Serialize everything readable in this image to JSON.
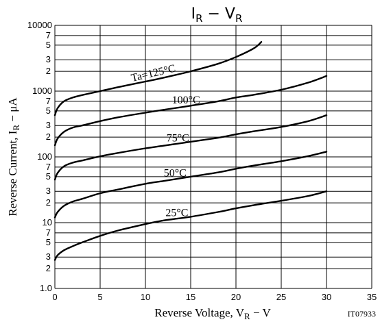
{
  "chart_data": {
    "type": "line",
    "title": {
      "main": "I",
      "sub": "R",
      "sep": " − ",
      "main2": "V",
      "sub2": "R"
    },
    "xlabel": {
      "text": "Reverse Voltage, V",
      "sub": "R",
      "suffix": " − V"
    },
    "ylabel": {
      "text": "Reverse Current, I",
      "sub": "R",
      "suffix": " − μA"
    },
    "x_ticks": [
      "0",
      "5",
      "10",
      "15",
      "20",
      "25",
      "30",
      "35"
    ],
    "y_major_ticks": [
      {
        "value": 1,
        "label": "1.0"
      },
      {
        "value": 10,
        "label": "10"
      },
      {
        "value": 100,
        "label": "100"
      },
      {
        "value": 1000,
        "label": "1000"
      },
      {
        "value": 10000,
        "label": "10000"
      }
    ],
    "y_minor_ticks": [
      {
        "value": 2,
        "label": "2"
      },
      {
        "value": 3,
        "label": "3"
      },
      {
        "value": 5,
        "label": "5"
      },
      {
        "value": 7,
        "label": "7"
      },
      {
        "value": 20,
        "label": "2"
      },
      {
        "value": 30,
        "label": "3"
      },
      {
        "value": 50,
        "label": "5"
      },
      {
        "value": 70,
        "label": "7"
      },
      {
        "value": 200,
        "label": "2"
      },
      {
        "value": 300,
        "label": "3"
      },
      {
        "value": 500,
        "label": "5"
      },
      {
        "value": 700,
        "label": "7"
      },
      {
        "value": 2000,
        "label": "2"
      },
      {
        "value": 3000,
        "label": "3"
      },
      {
        "value": 5000,
        "label": "5"
      },
      {
        "value": 7000,
        "label": "7"
      }
    ],
    "xlim": [
      0,
      35
    ],
    "ylim": [
      1,
      10000
    ],
    "y_scale": "log",
    "grid": true,
    "series": [
      {
        "name": "Ta=125°C",
        "x": [
          0,
          0.3,
          1,
          2,
          3,
          5,
          7,
          10,
          12,
          15,
          18,
          20,
          22,
          22.8
        ],
        "y": [
          430,
          550,
          700,
          800,
          870,
          1000,
          1150,
          1400,
          1600,
          2000,
          2600,
          3300,
          4500,
          5600
        ]
      },
      {
        "name": "100°C",
        "x": [
          0,
          0.3,
          1,
          2,
          3,
          5,
          7,
          10,
          12,
          15,
          18,
          20,
          22,
          25,
          28,
          30
        ],
        "y": [
          150,
          190,
          240,
          280,
          300,
          350,
          400,
          470,
          520,
          600,
          700,
          800,
          880,
          1050,
          1350,
          1700
        ]
      },
      {
        "name": "75°C",
        "x": [
          0,
          0.3,
          1,
          2,
          3,
          5,
          7,
          10,
          12,
          15,
          18,
          20,
          22,
          25,
          28,
          30
        ],
        "y": [
          45,
          57,
          72,
          82,
          88,
          102,
          115,
          135,
          148,
          170,
          195,
          220,
          245,
          285,
          350,
          430
        ]
      },
      {
        "name": "50°C",
        "x": [
          0,
          0.3,
          1,
          2,
          3,
          5,
          7,
          10,
          12,
          15,
          18,
          20,
          22,
          25,
          28,
          30
        ],
        "y": [
          12,
          14.5,
          18,
          21,
          23,
          28,
          32,
          39,
          43,
          50,
          58,
          66,
          74,
          86,
          103,
          120
        ]
      },
      {
        "name": "25°C",
        "x": [
          0,
          0.3,
          1,
          2,
          3,
          5,
          7,
          10,
          12,
          15,
          18,
          20,
          22,
          25,
          28,
          30
        ],
        "y": [
          2.7,
          3.2,
          3.8,
          4.4,
          5.0,
          6.3,
          7.6,
          9.5,
          10.8,
          12.3,
          14.5,
          16.5,
          18.5,
          21.5,
          25.5,
          30
        ]
      }
    ],
    "curve_labels": [
      {
        "series": "Ta=125°C",
        "text": "Ta=125°C"
      },
      {
        "series": "100°C",
        "text": "100°C"
      },
      {
        "series": "75°C",
        "text": "75°C"
      },
      {
        "series": "50°C",
        "text": "50°C"
      },
      {
        "series": "25°C",
        "text": "25°C"
      }
    ],
    "figure_code": "IT07933"
  }
}
